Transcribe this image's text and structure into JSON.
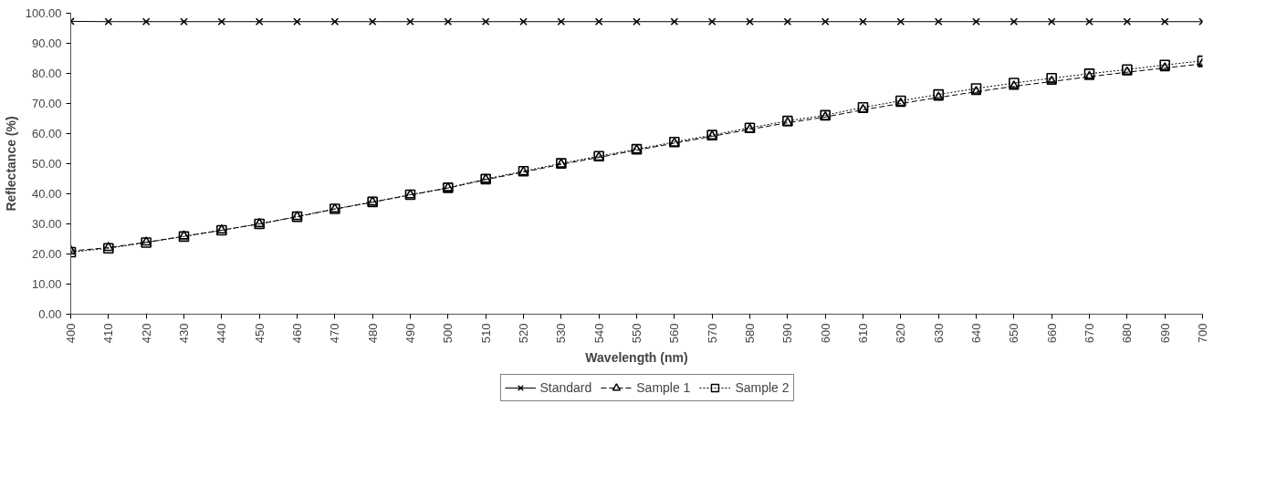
{
  "chart_data": {
    "type": "line",
    "xlabel": "Wavelength (nm)",
    "ylabel": "Reflectance (%)",
    "x": [
      400,
      410,
      420,
      430,
      440,
      450,
      460,
      470,
      480,
      490,
      500,
      510,
      520,
      530,
      540,
      550,
      560,
      570,
      580,
      590,
      600,
      610,
      620,
      630,
      640,
      650,
      660,
      670,
      680,
      690,
      700
    ],
    "series": [
      {
        "name": "Standard",
        "color": "#000000",
        "marker": "cross",
        "line_style": "solid",
        "values": [
          97.3,
          97.2,
          97.2,
          97.2,
          97.2,
          97.2,
          97.2,
          97.2,
          97.2,
          97.2,
          97.2,
          97.2,
          97.2,
          97.2,
          97.2,
          97.2,
          97.2,
          97.2,
          97.2,
          97.2,
          97.2,
          97.2,
          97.2,
          97.2,
          97.2,
          97.2,
          97.2,
          97.2,
          97.2,
          97.2,
          97.2
        ]
      },
      {
        "name": "Sample 1",
        "color": "#000000",
        "marker": "triangle",
        "line_style": "dashed",
        "values": [
          21.0,
          22.1,
          23.9,
          25.9,
          27.9,
          30.0,
          32.4,
          34.9,
          37.2,
          39.6,
          41.9,
          44.7,
          47.2,
          49.8,
          52.1,
          54.5,
          56.8,
          59.1,
          61.4,
          63.6,
          65.5,
          67.9,
          70.0,
          72.0,
          73.9,
          75.7,
          77.3,
          78.9,
          80.4,
          81.8,
          83.2
        ]
      },
      {
        "name": "Sample 2",
        "color": "#000000",
        "marker": "square",
        "line_style": "dotted",
        "values": [
          20.6,
          21.9,
          23.8,
          25.8,
          27.9,
          30.0,
          32.4,
          35.0,
          37.3,
          39.7,
          42.0,
          44.9,
          47.5,
          50.1,
          52.5,
          54.8,
          57.2,
          59.5,
          61.9,
          64.2,
          66.1,
          68.7,
          70.9,
          73.0,
          75.0,
          76.8,
          78.4,
          79.9,
          81.3,
          82.8,
          84.2
        ]
      }
    ],
    "xlim": [
      400,
      700
    ],
    "xticks": [
      400,
      410,
      420,
      430,
      440,
      450,
      460,
      470,
      480,
      490,
      500,
      510,
      520,
      530,
      540,
      550,
      560,
      570,
      580,
      590,
      600,
      610,
      620,
      630,
      640,
      650,
      660,
      670,
      680,
      690,
      700
    ],
    "ylim": [
      0,
      100
    ],
    "yticks": [
      {
        "value": 0,
        "label": "0.00"
      },
      {
        "value": 10,
        "label": "10.00"
      },
      {
        "value": 20,
        "label": "20.00"
      },
      {
        "value": 30,
        "label": "30.00"
      },
      {
        "value": 40,
        "label": "40.00"
      },
      {
        "value": 50,
        "label": "50.00"
      },
      {
        "value": 60,
        "label": "60.00"
      },
      {
        "value": 70,
        "label": "70.00"
      },
      {
        "value": 80,
        "label": "80.00"
      },
      {
        "value": 90,
        "label": "90.00"
      },
      {
        "value": 100,
        "label": "100.00"
      }
    ],
    "grid": false,
    "legend": "bottom"
  }
}
